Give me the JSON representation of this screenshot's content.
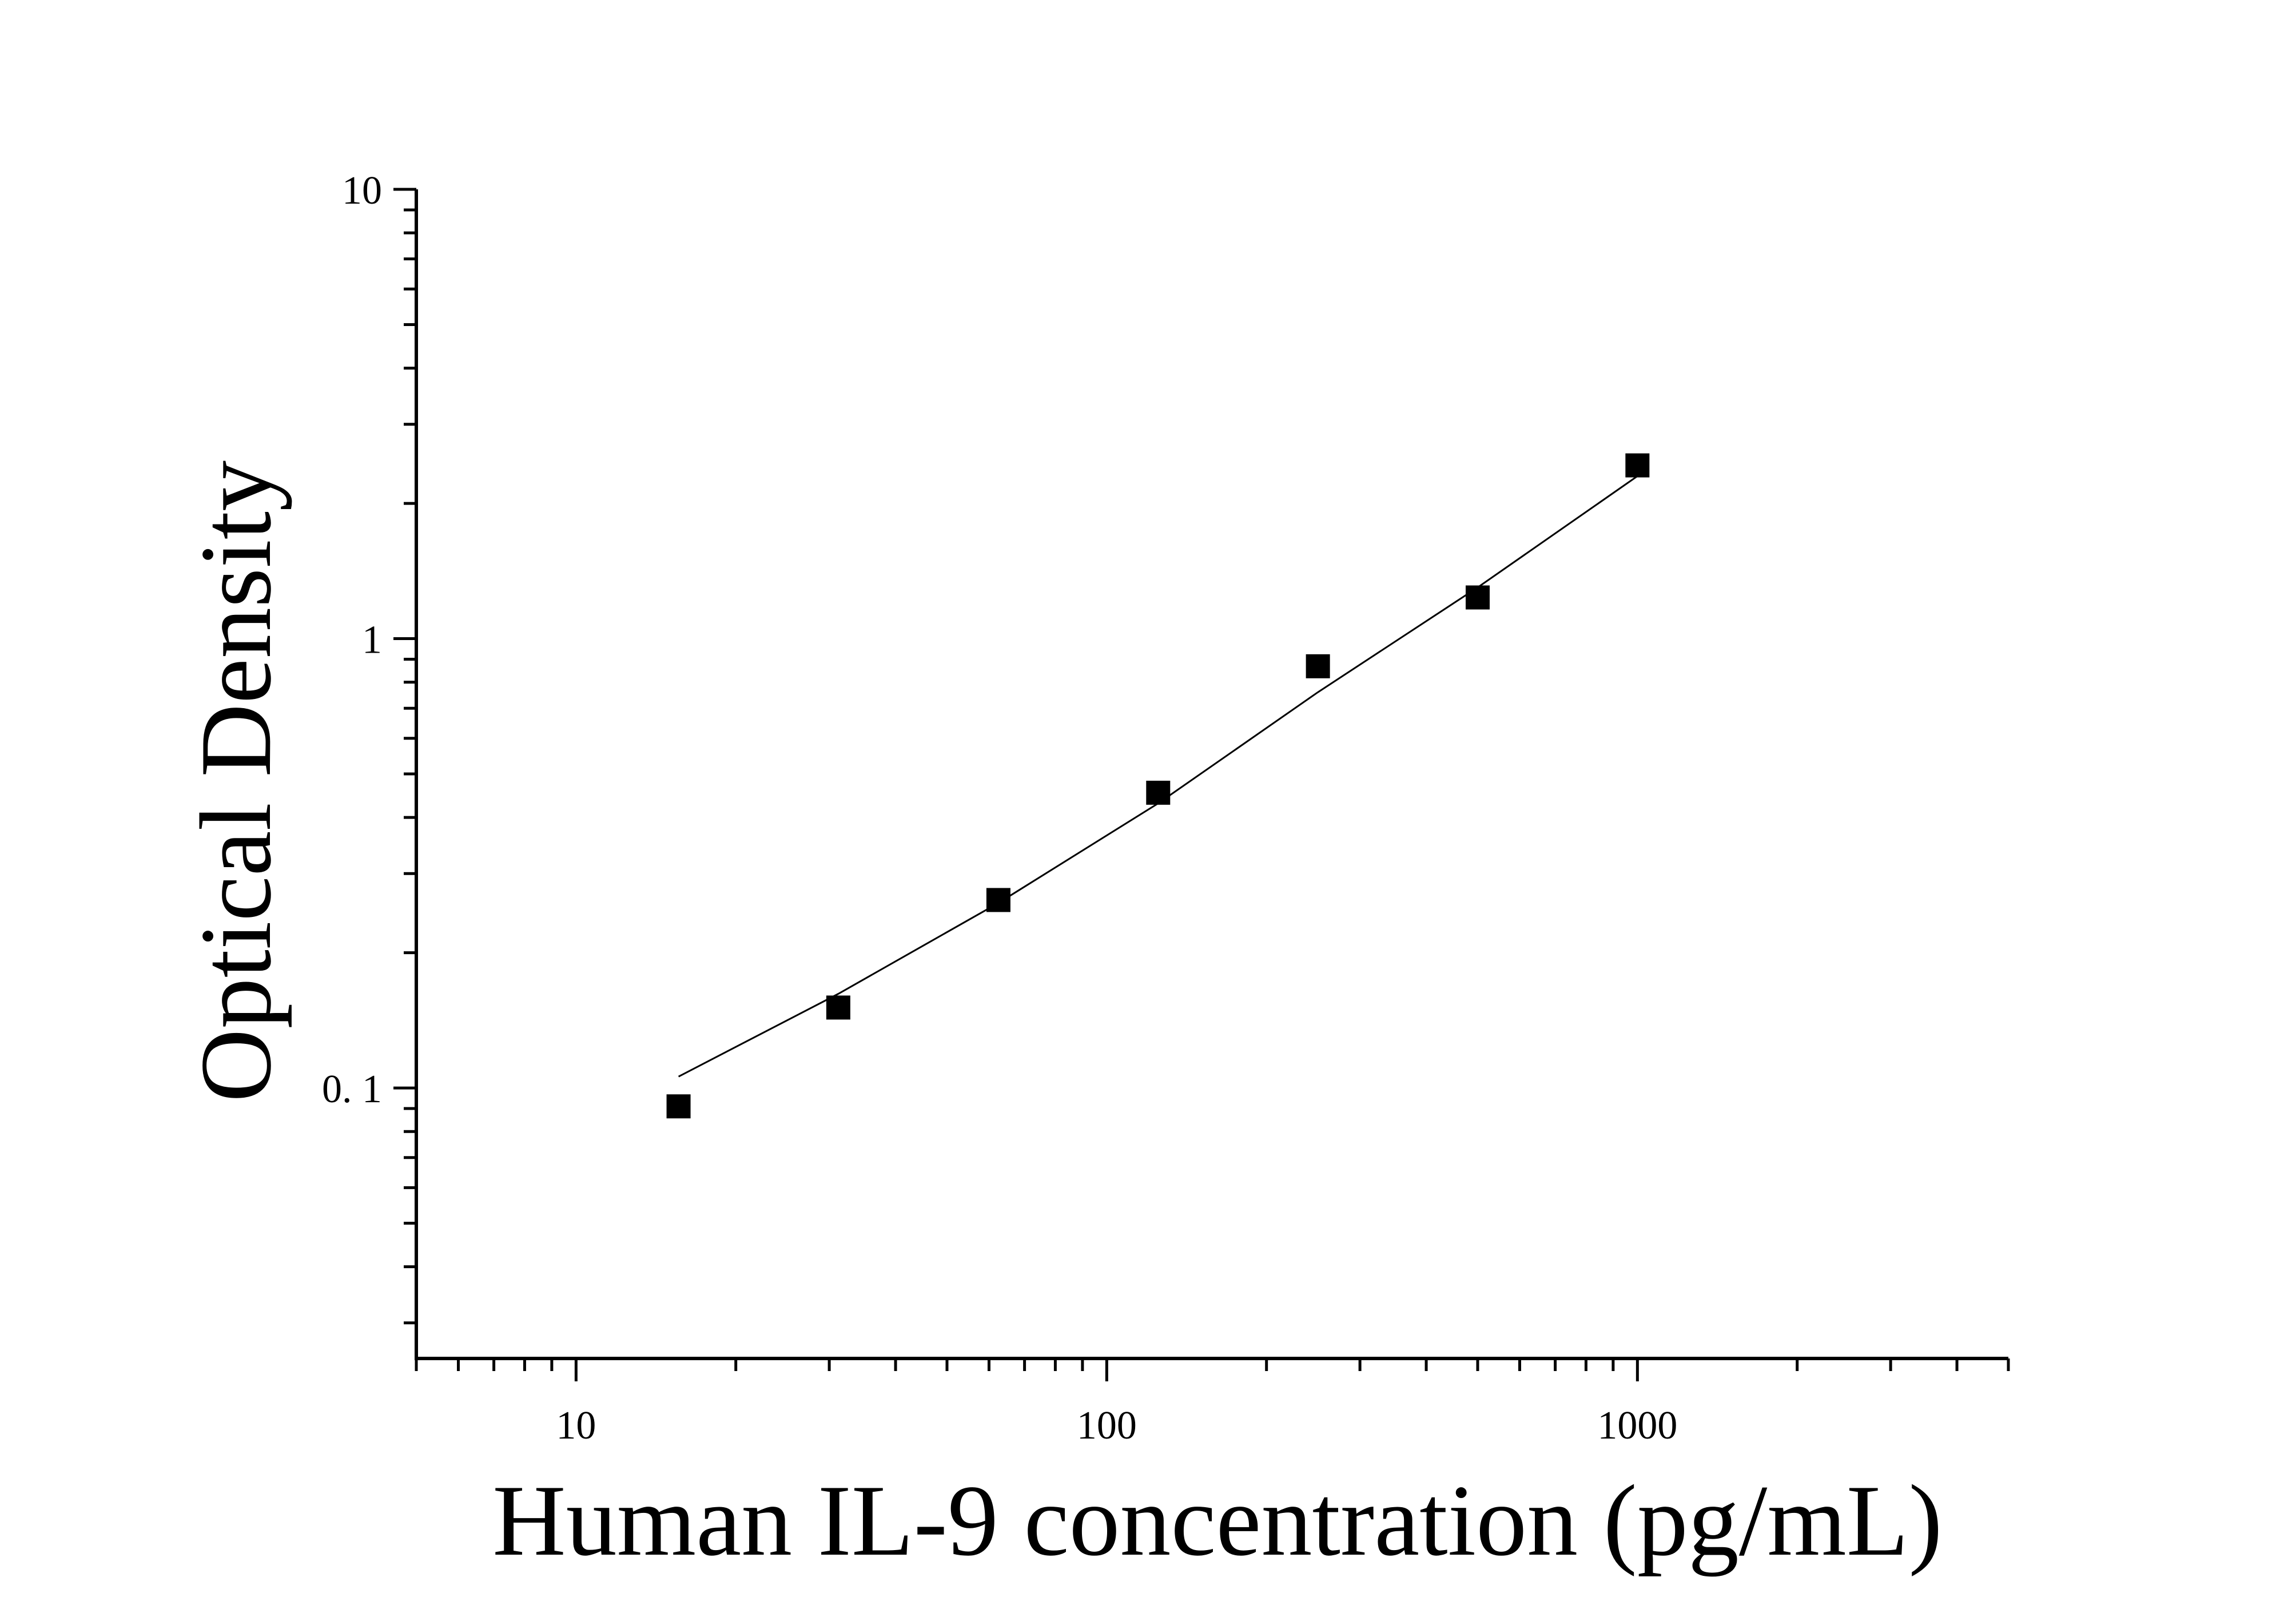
{
  "chart_data": {
    "type": "scatter",
    "xlabel": "Human IL-9 concentration (pg/mL)",
    "ylabel": "Optical Density",
    "x_scale": "log",
    "y_scale": "log",
    "xlim": [
      5,
      5000
    ],
    "ylim": [
      0.025,
      10
    ],
    "x_ticks": [
      {
        "value": 10,
        "label": "10"
      },
      {
        "value": 100,
        "label": "100"
      },
      {
        "value": 1000,
        "label": "1000"
      }
    ],
    "y_ticks": [
      {
        "value": 0.1,
        "label": "0. 1"
      },
      {
        "value": 1,
        "label": "1"
      },
      {
        "value": 10,
        "label": "10"
      }
    ],
    "grid": false,
    "marker": "square",
    "color": "#000000",
    "series": [
      {
        "points": [
          {
            "x": 15.6,
            "y": 0.091
          },
          {
            "x": 31.2,
            "y": 0.151
          },
          {
            "x": 62.5,
            "y": 0.262
          },
          {
            "x": 125,
            "y": 0.454
          },
          {
            "x": 250,
            "y": 0.868
          },
          {
            "x": 500,
            "y": 1.235
          },
          {
            "x": 1000,
            "y": 2.43
          }
        ]
      }
    ],
    "fit_curve": [
      {
        "x": 15.6,
        "y": 0.106
      },
      {
        "x": 31.2,
        "y": 0.162
      },
      {
        "x": 62.5,
        "y": 0.258
      },
      {
        "x": 125,
        "y": 0.43
      },
      {
        "x": 250,
        "y": 0.76
      },
      {
        "x": 500,
        "y": 1.3
      },
      {
        "x": 1000,
        "y": 2.3
      }
    ]
  }
}
